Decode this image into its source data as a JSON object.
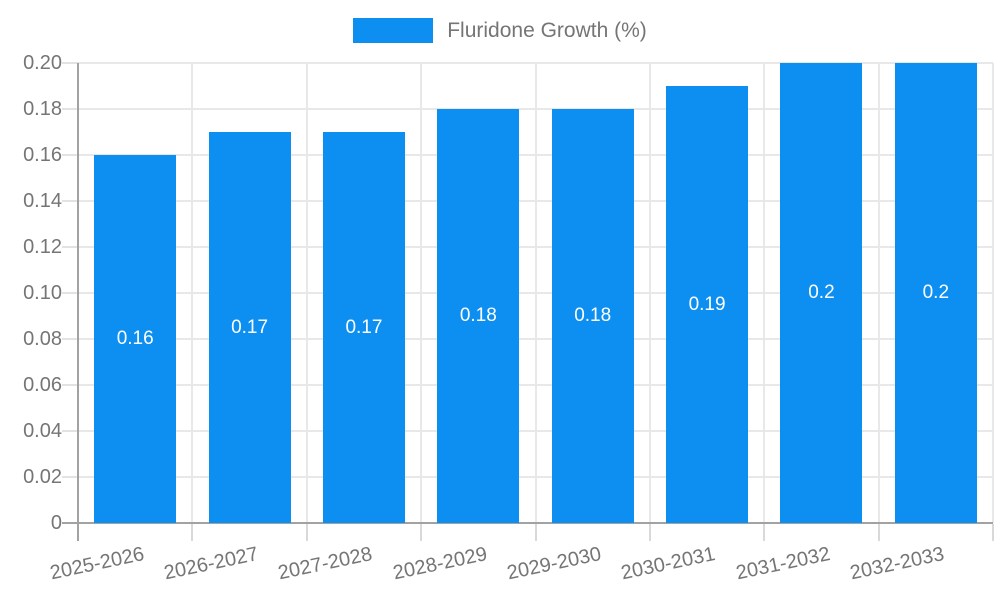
{
  "chart_data": {
    "type": "bar",
    "title": "Fluridone Growth (%)",
    "categories": [
      "2025-2026",
      "2026-2027",
      "2027-2028",
      "2028-2029",
      "2029-2030",
      "2030-2031",
      "2031-2032",
      "2032-2033"
    ],
    "series": [
      {
        "name": "Fluridone Growth (%)",
        "values": [
          0.16,
          0.17,
          0.17,
          0.18,
          0.18,
          0.19,
          0.2,
          0.2
        ]
      }
    ],
    "bar_value_labels": [
      "0.16",
      "0.17",
      "0.17",
      "0.18",
      "0.18",
      "0.19",
      "0.2",
      "0.2"
    ],
    "xlabel": "",
    "ylabel": "",
    "y_axis": {
      "min": 0,
      "max": 0.2,
      "tick_step": 0.02,
      "tick_labels": [
        "0",
        "0.02",
        "0.04",
        "0.06",
        "0.08",
        "0.10",
        "0.12",
        "0.14",
        "0.16",
        "0.18",
        "0.20"
      ]
    },
    "grid": true,
    "legend": {
      "position": "top",
      "entries": [
        {
          "label": "Fluridone Growth (%)",
          "color": "#0d8ff2"
        }
      ]
    },
    "colors": {
      "bar": "#0d8ff2",
      "grid": "#e8e8e8",
      "axis": "#a2a2a2",
      "bottom_tick": "#d9d9d9",
      "left_tick": "#e2e2e2",
      "text": "#757575",
      "bar_label": "#ffffff",
      "background": "#ffffff"
    }
  }
}
